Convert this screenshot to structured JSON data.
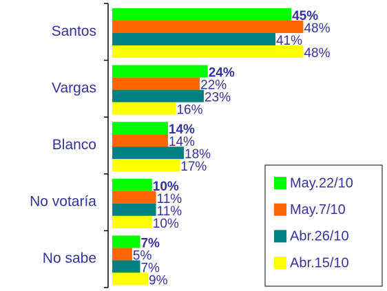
{
  "chart_data": {
    "type": "bar",
    "orientation": "horizontal",
    "categories": [
      "Santos",
      "Vargas",
      "Blanco",
      "No votaría",
      "No sabe"
    ],
    "series": [
      {
        "name": "May.22/10",
        "color": "#00ff00",
        "values": [
          45,
          24,
          14,
          10,
          7
        ],
        "value_labels": [
          "45%",
          "24%",
          "14%",
          "10%",
          "7%"
        ]
      },
      {
        "name": "May.7/10",
        "color": "#ff6600",
        "values": [
          48,
          22,
          14,
          11,
          5
        ],
        "value_labels": [
          "48%",
          "22%",
          "14%",
          "11%",
          "5%"
        ]
      },
      {
        "name": "Abr.26/10",
        "color": "#008080",
        "values": [
          41,
          23,
          18,
          11,
          7
        ],
        "value_labels": [
          "41%",
          "23%",
          "18%",
          "11%",
          "7%"
        ]
      },
      {
        "name": "Abr.15/10",
        "color": "#ffff00",
        "values": [
          48,
          16,
          17,
          10,
          9
        ],
        "value_labels": [
          "48%",
          "16%",
          "17%",
          "10%",
          "9%"
        ]
      }
    ],
    "legend": "lower right"
  }
}
